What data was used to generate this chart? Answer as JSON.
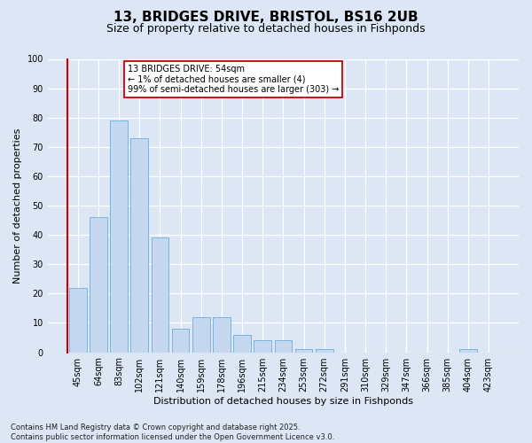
{
  "title_line1": "13, BRIDGES DRIVE, BRISTOL, BS16 2UB",
  "title_line2": "Size of property relative to detached houses in Fishponds",
  "xlabel": "Distribution of detached houses by size in Fishponds",
  "ylabel": "Number of detached properties",
  "categories": [
    "45sqm",
    "64sqm",
    "83sqm",
    "102sqm",
    "121sqm",
    "140sqm",
    "159sqm",
    "178sqm",
    "196sqm",
    "215sqm",
    "234sqm",
    "253sqm",
    "272sqm",
    "291sqm",
    "310sqm",
    "329sqm",
    "347sqm",
    "366sqm",
    "385sqm",
    "404sqm",
    "423sqm"
  ],
  "values": [
    22,
    46,
    79,
    73,
    39,
    8,
    12,
    12,
    6,
    4,
    4,
    1,
    1,
    0,
    0,
    0,
    0,
    0,
    0,
    1,
    0
  ],
  "bar_color": "#c5d8f0",
  "bar_edge_color": "#6aaee0",
  "highlight_line_color": "#cc0000",
  "annotation_text": "13 BRIDGES DRIVE: 54sqm\n← 1% of detached houses are smaller (4)\n99% of semi-detached houses are larger (303) →",
  "annotation_box_color": "#ffffff",
  "annotation_border_color": "#cc0000",
  "bg_color": "#dce6f5",
  "plot_bg_color": "#dce6f5",
  "grid_color": "#ffffff",
  "ylim": [
    0,
    100
  ],
  "yticks": [
    0,
    10,
    20,
    30,
    40,
    50,
    60,
    70,
    80,
    90,
    100
  ],
  "footnote": "Contains HM Land Registry data © Crown copyright and database right 2025.\nContains public sector information licensed under the Open Government Licence v3.0.",
  "title_fontsize": 11,
  "subtitle_fontsize": 9,
  "axis_label_fontsize": 8,
  "tick_fontsize": 7,
  "annotation_fontsize": 7,
  "footnote_fontsize": 6
}
